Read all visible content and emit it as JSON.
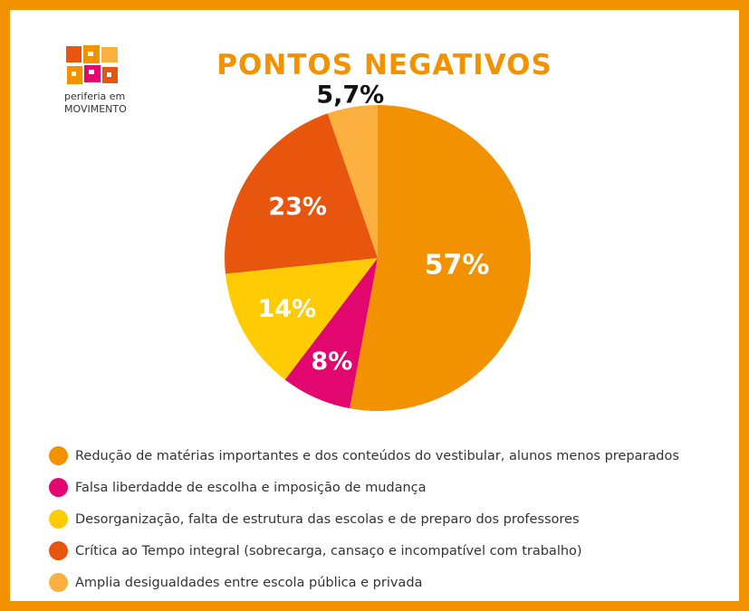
{
  "header": {
    "title": "PONTOS NEGATIVOS"
  },
  "logo": {
    "line1": "periferia em",
    "line2": "MOVIMENTO"
  },
  "chart_data": {
    "type": "pie",
    "title": "PONTOS NEGATIVOS",
    "slices": [
      {
        "label": "Redução de matérias importantes e dos conteúdos do vestibular, alunos menos preparados",
        "value": 57,
        "display": "57%",
        "color": "#f39200"
      },
      {
        "label": "Falsa liberdadde de escolha e imposição de mudança",
        "value": 8,
        "display": "8%",
        "color": "#e2066f"
      },
      {
        "label": "Desorganização, falta de estrutura das escolas e de preparo dos professores",
        "value": 14,
        "display": "14%",
        "color": "#ffcb05"
      },
      {
        "label": "Crítica ao Tempo integral (sobrecarga, cansaço e incompatível com trabalho)",
        "value": 23,
        "display": "23%",
        "color": "#e8560e"
      },
      {
        "label": "Amplia desigualdades entre escola pública e privada",
        "value": 5.7,
        "display": "5,7%",
        "color": "#fbb040"
      }
    ],
    "legend_position": "bottom"
  }
}
